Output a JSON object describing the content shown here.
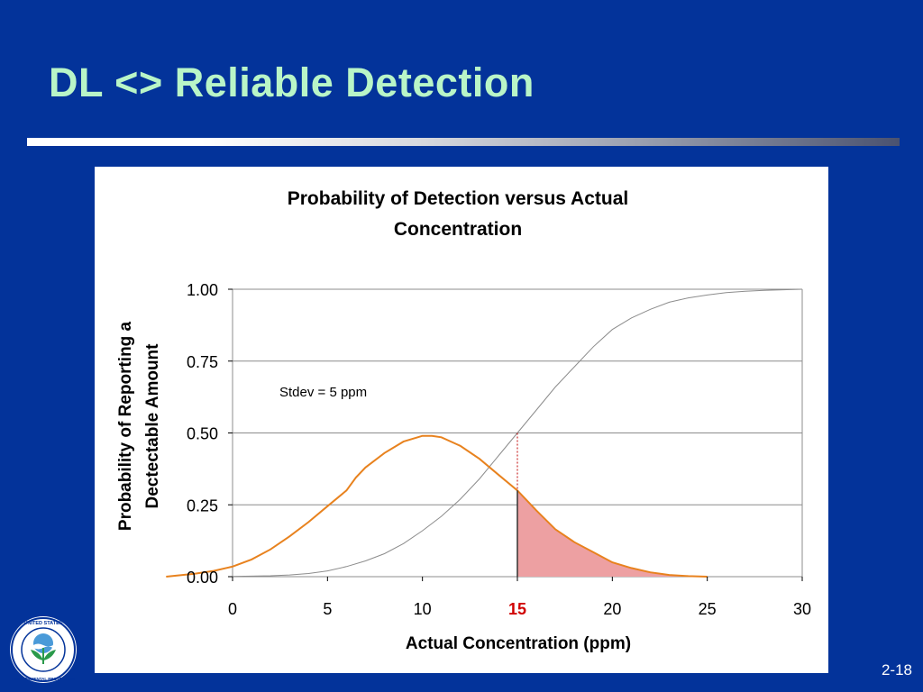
{
  "slide": {
    "title": "DL <> Reliable Detection",
    "page_number": "2-18"
  },
  "chart_data": {
    "type": "line",
    "title_lines": [
      "Probability of Detection versus Actual",
      "Concentration"
    ],
    "xlabel": "Actual Concentration (ppm)",
    "ylabel_lines": [
      "Probability of Reporting a",
      "Dectectable Amount"
    ],
    "xlim": [
      0,
      30
    ],
    "ylim": [
      0,
      1
    ],
    "x_ticks": [
      {
        "value": 0,
        "label": "0"
      },
      {
        "value": 5,
        "label": "5"
      },
      {
        "value": 10,
        "label": "10"
      },
      {
        "value": 15,
        "label": "15",
        "highlight": true
      },
      {
        "value": 20,
        "label": "20"
      },
      {
        "value": 25,
        "label": "25"
      },
      {
        "value": 30,
        "label": "30"
      }
    ],
    "y_ticks": [
      {
        "value": 0,
        "label": "0.00"
      },
      {
        "value": 0.25,
        "label": "0.25"
      },
      {
        "value": 0.5,
        "label": "0.50"
      },
      {
        "value": 0.75,
        "label": "0.75"
      },
      {
        "value": 1,
        "label": "1.00"
      }
    ],
    "gridlines": "horizontal",
    "annotation": "Stdev = 5 ppm",
    "threshold": {
      "x": 15,
      "line_color": "#c00000"
    },
    "series": [
      {
        "kind": "cdf",
        "color": "#8c8c8c",
        "x": [
          0,
          1,
          2,
          3,
          4,
          5,
          6,
          7,
          8,
          9,
          10,
          11,
          12,
          13,
          14,
          15,
          16,
          17,
          18,
          19,
          20,
          21,
          22,
          23,
          24,
          25,
          26,
          27,
          28,
          29,
          30
        ],
        "y": [
          0.001,
          0.002,
          0.003,
          0.006,
          0.011,
          0.02,
          0.035,
          0.055,
          0.08,
          0.115,
          0.16,
          0.21,
          0.27,
          0.34,
          0.42,
          0.5,
          0.58,
          0.66,
          0.73,
          0.8,
          0.86,
          0.9,
          0.93,
          0.955,
          0.97,
          0.98,
          0.988,
          0.993,
          0.996,
          0.998,
          1.0
        ]
      },
      {
        "kind": "pdf",
        "color": "#e8821e",
        "x": [
          -3.5,
          -2,
          -1,
          0,
          1,
          2,
          3,
          4,
          5,
          6,
          6.5,
          7,
          8,
          9,
          10,
          10.5,
          11,
          12,
          13,
          14,
          15,
          16,
          17,
          18,
          19,
          20,
          21,
          22,
          23,
          24,
          25
        ],
        "y": [
          0.0,
          0.01,
          0.02,
          0.035,
          0.06,
          0.095,
          0.14,
          0.19,
          0.245,
          0.3,
          0.345,
          0.38,
          0.43,
          0.47,
          0.49,
          0.49,
          0.485,
          0.455,
          0.41,
          0.355,
          0.3,
          0.23,
          0.165,
          0.12,
          0.085,
          0.05,
          0.03,
          0.015,
          0.006,
          0.002,
          0.0
        ]
      }
    ],
    "shaded_region": {
      "from_x": 15,
      "to_x": 25,
      "under_series": "pdf",
      "color": "#eda0a2"
    }
  },
  "logo": {
    "alt_text": "UNITED STATES ENVIRONMENTAL PROTECTION AGENCY"
  }
}
